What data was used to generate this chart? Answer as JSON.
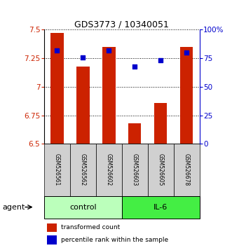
{
  "title": "GDS3773 / 10340051",
  "samples": [
    "GSM526561",
    "GSM526562",
    "GSM526602",
    "GSM526603",
    "GSM526605",
    "GSM526678"
  ],
  "bar_values": [
    7.47,
    7.18,
    7.35,
    6.68,
    6.86,
    7.35
  ],
  "percentile_values": [
    82,
    76,
    82,
    68,
    73,
    80
  ],
  "bar_color": "#cc2200",
  "dot_color": "#0000cc",
  "ylim_left": [
    6.5,
    7.5
  ],
  "ylim_right": [
    0,
    100
  ],
  "yticks_left": [
    6.5,
    6.75,
    7.0,
    7.25,
    7.5
  ],
  "ytick_labels_left": [
    "6.5",
    "6.75",
    "7",
    "7.25",
    "7.5"
  ],
  "yticks_right": [
    0,
    25,
    50,
    75,
    100
  ],
  "ytick_labels_right": [
    "0",
    "25",
    "50",
    "75",
    "100%"
  ],
  "groups": [
    {
      "label": "control",
      "indices": [
        0,
        1,
        2
      ],
      "color": "#bbffbb"
    },
    {
      "label": "IL-6",
      "indices": [
        3,
        4,
        5
      ],
      "color": "#44ee44"
    }
  ],
  "agent_label": "agent",
  "legend_bar_label": "transformed count",
  "legend_dot_label": "percentile rank within the sample",
  "background_color": "#ffffff",
  "bar_bottom": 6.5,
  "sample_box_color": "#d0d0d0"
}
